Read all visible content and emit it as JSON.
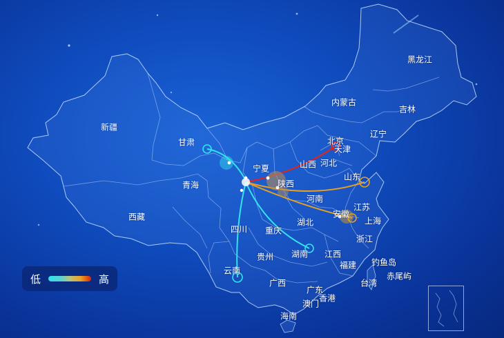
{
  "provinces": {
    "heilongjiang": "黑龙江",
    "jilin": "吉林",
    "liaoning": "辽宁",
    "neimenggu": "内蒙古",
    "xinjiang": "新疆",
    "gansu": "甘肃",
    "qinghai": "青海",
    "xizang": "西藏",
    "ningxia": "宁夏",
    "shanxi": "山西",
    "hebei": "河北",
    "beijing": "北京",
    "tianjin": "天津",
    "shandong": "山东",
    "henan": "河南",
    "shaanxi": "陕西",
    "jiangsu": "江苏",
    "shanghai": "上海",
    "anhui": "安徽",
    "hubei": "湖北",
    "zhejiang": "浙江",
    "sichuan": "四川",
    "chongqing": "重庆",
    "hunan": "湖南",
    "jiangxi": "江西",
    "fujian": "福建",
    "guizhou": "贵州",
    "yunnan": "云南",
    "guangxi": "广西",
    "guangdong": "广东",
    "xianggang": "香港",
    "aomen": "澳门",
    "hainan": "海南",
    "taiwan": "台湾",
    "diaoyudao": "钓鱼岛",
    "chiweiyu": "赤尾屿"
  },
  "legend": {
    "low": "低",
    "high": "高"
  },
  "flows": [
    {
      "from": "甘肃",
      "to": "宁夏",
      "level": "low",
      "color": "#33e3ee"
    },
    {
      "from": "宁夏",
      "to": "北京",
      "level": "high",
      "color": "#e0251c"
    },
    {
      "from": "宁夏",
      "to": "山东",
      "level": "mid",
      "color": "#e6a021"
    },
    {
      "from": "宁夏",
      "to": "上海",
      "level": "mid",
      "color": "#e6a021"
    },
    {
      "from": "宁夏",
      "to": "湖南",
      "level": "low",
      "color": "#33e3ee"
    },
    {
      "from": "宁夏",
      "to": "云南",
      "level": "low",
      "color": "#33e3ee"
    }
  ]
}
